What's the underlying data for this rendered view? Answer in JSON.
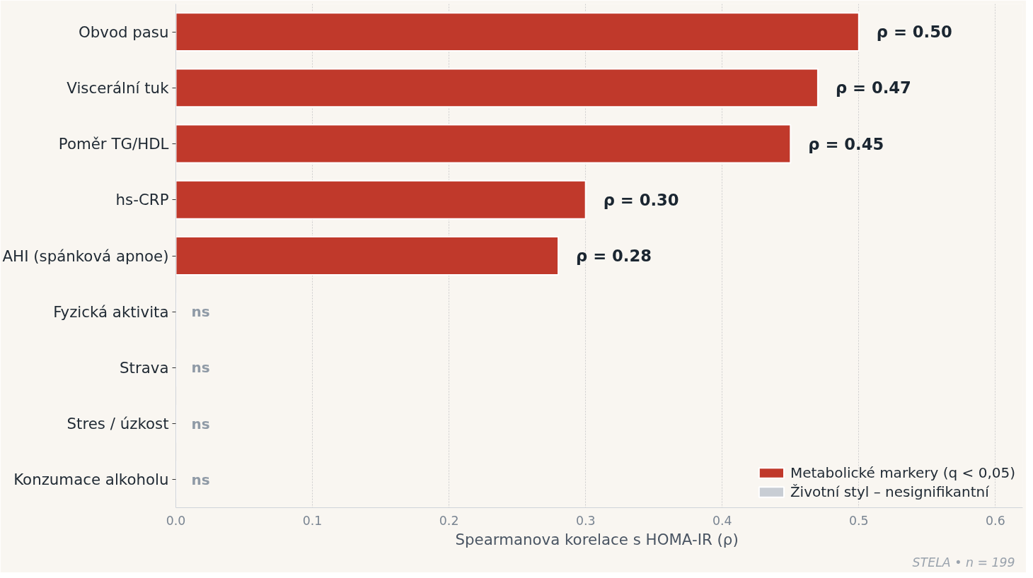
{
  "chart_data": {
    "type": "bar",
    "orientation": "horizontal",
    "categories": [
      "Obvod pasu",
      "Viscerální tuk",
      "Poměr TG/HDL",
      "hs-CRP",
      "AHI (spánková apnoe)",
      "Fyzická aktivita",
      "Strava",
      "Stres / úzkost",
      "Konzumace alkoholu"
    ],
    "series": [
      {
        "name": "Metabolické markery (q < 0,05)",
        "color": "#c0392b",
        "values": [
          0.5,
          0.47,
          0.45,
          0.3,
          0.28,
          null,
          null,
          null,
          null
        ],
        "value_labels": [
          "ρ = 0.50",
          "ρ = 0.47",
          "ρ = 0.45",
          "ρ = 0.30",
          "ρ = 0.28",
          null,
          null,
          null,
          null
        ]
      },
      {
        "name": "Životní styl – nesignifikantní",
        "color": "#c8cdd4",
        "values": [
          null,
          null,
          null,
          null,
          null,
          0,
          0,
          0,
          0
        ],
        "value_labels": [
          null,
          null,
          null,
          null,
          null,
          "ns",
          "ns",
          "ns",
          "ns"
        ]
      }
    ],
    "xlabel": "Spearmanova korelace s HOMA-IR  (ρ)",
    "xlim": [
      0,
      0.62
    ],
    "xticks": [
      {
        "value": 0,
        "label": "0.0"
      },
      {
        "value": 0.1,
        "label": "0.1"
      },
      {
        "value": 0.2,
        "label": "0.2"
      },
      {
        "value": 0.3,
        "label": "0.3"
      },
      {
        "value": 0.4,
        "label": "0.4"
      },
      {
        "value": 0.5,
        "label": "0.5"
      },
      {
        "value": 0.6,
        "label": "0.6"
      }
    ],
    "grid": "x",
    "legend": "bottom right",
    "annotations": [
      "STELA  •  n = 199"
    ]
  }
}
